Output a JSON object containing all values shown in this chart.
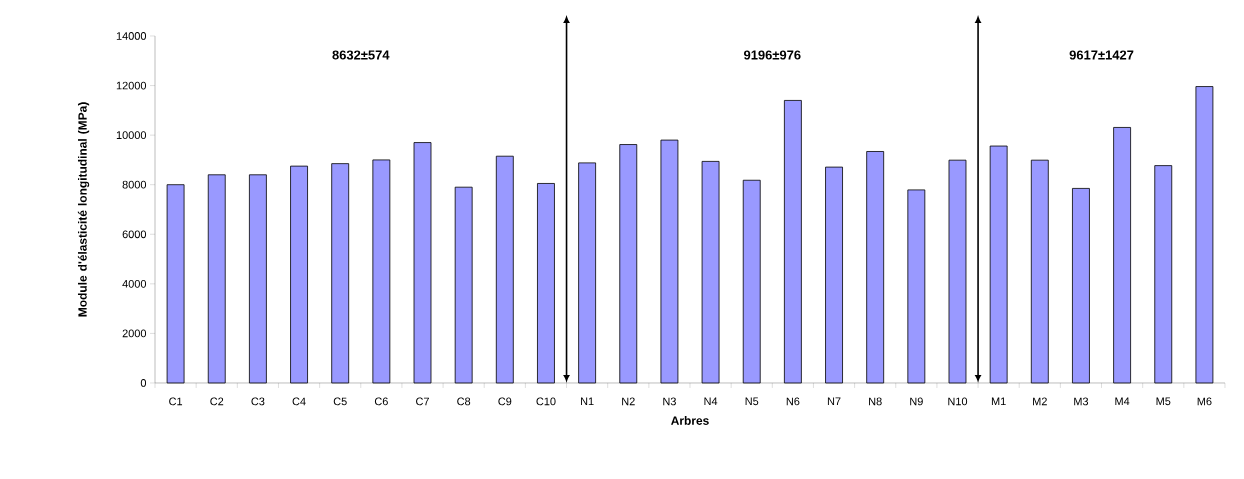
{
  "chart_data": {
    "type": "bar",
    "xlabel": "Arbres",
    "ylabel": "Module d'élasticité longitudinal (MPa)",
    "categories": [
      "C1",
      "C2",
      "C3",
      "C4",
      "C5",
      "C6",
      "C7",
      "C8",
      "C9",
      "C10",
      "N1",
      "N2",
      "N3",
      "N4",
      "N5",
      "N6",
      "N7",
      "N8",
      "N9",
      "N10",
      "M1",
      "M2",
      "M3",
      "M4",
      "M5",
      "M6"
    ],
    "values": [
      8000,
      8400,
      8400,
      8750,
      8850,
      9000,
      9700,
      7900,
      9150,
      8050,
      8880,
      9620,
      9800,
      8940,
      8180,
      11400,
      8710,
      9340,
      7790,
      8990,
      9560,
      8990,
      7850,
      10310,
      8770,
      11960
    ],
    "color": "#9999ff",
    "ylim": [
      0,
      14000
    ],
    "yticks": [
      0,
      2000,
      4000,
      6000,
      8000,
      10000,
      12000,
      14000
    ],
    "annotations": [
      "8632±574",
      "9196±976",
      "9617±1427"
    ]
  }
}
